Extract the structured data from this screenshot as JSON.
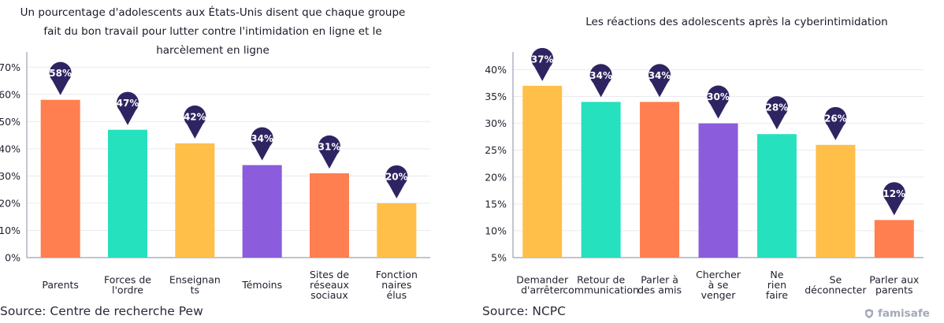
{
  "chart_data": [
    {
      "type": "bar",
      "title": "Un pourcentage d'adolescents aux États-Unis disent que chaque groupe fait du bon travail pour lutter contre l'intimidation en ligne et le harcèlement en ligne",
      "title_lines": [
        "Un pourcentage d'adolescents aux États-Unis disent que chaque groupe",
        "fait du bon travail pour lutter contre l'intimidation en ligne et le",
        "harcèlement en ligne"
      ],
      "categories": [
        "Parents",
        "Forces de l'ordre",
        "Enseignants",
        "Témoins",
        "Sites de réseaux sociaux",
        "Fonctionnaires élus"
      ],
      "category_lines": [
        [
          "Parents"
        ],
        [
          "Forces de",
          "l'ordre"
        ],
        [
          "Enseignan",
          "ts"
        ],
        [
          "Témoins"
        ],
        [
          "Sites de",
          "réseaux",
          "sociaux"
        ],
        [
          "Fonction",
          "naires",
          "élus"
        ]
      ],
      "values": [
        58,
        47,
        42,
        34,
        31,
        20
      ],
      "value_labels": [
        "58%",
        "47%",
        "42%",
        "34%",
        "31%",
        "20%"
      ],
      "colors": [
        "#ff7f50",
        "#26e1bd",
        "#ffbf49",
        "#8b5cdc",
        "#ff7f50",
        "#ffbf49"
      ],
      "yticks": [
        0,
        10,
        20,
        30,
        40,
        50,
        60,
        70
      ],
      "ytick_labels": [
        "0%",
        "10%",
        "20%",
        "30%",
        "40%",
        "50%",
        "60%",
        "70%"
      ],
      "ylim": [
        0,
        75
      ],
      "grid": true,
      "source": "Source: Centre de recherche Pew"
    },
    {
      "type": "bar",
      "title": "Les réactions des adolescents après la cyberintimidation",
      "categories": [
        "Demander d'arrêter",
        "Retour de communication",
        "Parler à des amis",
        "Chercher à se venger",
        "Ne rien faire",
        "Se déconnecter",
        "Parler aux parents"
      ],
      "category_lines": [
        [
          "Demander",
          "d'arrêter"
        ],
        [
          "Retour de",
          "communication"
        ],
        [
          "Parler à",
          "des amis"
        ],
        [
          "Chercher",
          "à se",
          "venger"
        ],
        [
          "Ne",
          "rien",
          "faire"
        ],
        [
          "Se",
          "déconnecter"
        ],
        [
          "Parler aux",
          "parents"
        ]
      ],
      "values": [
        37,
        34,
        34,
        30,
        28,
        26,
        12
      ],
      "value_labels": [
        "37%",
        "34%",
        "34%",
        "30%",
        "28%",
        "26%",
        "12%"
      ],
      "colors": [
        "#ffbf49",
        "#26e1bd",
        "#ff7f50",
        "#8b5cdc",
        "#26e1bd",
        "#ffbf49",
        "#ff7f50"
      ],
      "yticks": [
        5,
        10,
        15,
        20,
        25,
        30,
        35,
        40
      ],
      "ytick_labels": [
        "5%",
        "10%",
        "15%",
        "20%",
        "25%",
        "30%",
        "35%",
        "40%"
      ],
      "ylim": [
        5,
        43
      ],
      "grid": true,
      "source": "Source: NCPC"
    }
  ],
  "colors": {
    "pin": "#2f2462",
    "axis": "#9aa0b0",
    "grid": "#e8eaf0"
  },
  "brand": "famisafe",
  "brand_icon": "famisafe-logo-icon"
}
